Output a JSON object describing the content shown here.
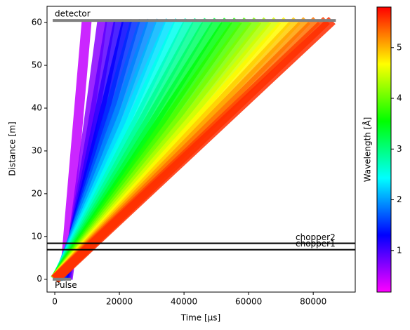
{
  "chart_data": {
    "type": "time-distance",
    "xlabel": "Time [µs]",
    "ylabel": "Distance [m]",
    "colorbar_label": "Wavelength [Å]",
    "xlim": [
      -2400,
      93000
    ],
    "xticks": [
      0,
      20000,
      40000,
      60000,
      80000
    ],
    "ylim": [
      -3,
      63.8
    ],
    "yticks": [
      0,
      10,
      20,
      30,
      40,
      50,
      60
    ],
    "clim": [
      0.18,
      5.8
    ],
    "cticks": [
      1,
      2,
      3,
      4,
      5
    ],
    "colormap": [
      "#ff00ff",
      "#0000ff",
      "#00ffff",
      "#00ff00",
      "#ffff00",
      "#ff0000"
    ],
    "detector": {
      "label": "detector",
      "distance": 60.5,
      "t_start": 0,
      "t_end": 87000,
      "color": "#808080"
    },
    "pulse": {
      "label": "Pulse",
      "t_start": 0,
      "t_end": 5000,
      "color": "#808080"
    },
    "choppers": [
      {
        "label": "chopper1",
        "distance": 6.9,
        "color": "#000000"
      },
      {
        "label": "chopper2",
        "distance": 8.4,
        "color": "#000000"
      }
    ],
    "rays": [
      {
        "wavelength": 0.45,
        "t_start": 3000,
        "t_end": 9882
      },
      {
        "wavelength": 0.7,
        "t_start": 4000,
        "t_end": 14705
      },
      {
        "wavelength": 0.9,
        "t_start": 3500,
        "t_end": 17264
      },
      {
        "wavelength": 1.1,
        "t_start": 3000,
        "t_end": 19822
      },
      {
        "wavelength": 1.3,
        "t_start": 2500,
        "t_end": 22381
      },
      {
        "wavelength": 1.5,
        "t_start": 2000,
        "t_end": 24940
      },
      {
        "wavelength": 1.7,
        "t_start": 1500,
        "t_end": 27498
      },
      {
        "wavelength": 1.9,
        "t_start": 1000,
        "t_end": 30057
      },
      {
        "wavelength": 2.1,
        "t_start": 800,
        "t_end": 32915
      },
      {
        "wavelength": 2.3,
        "t_start": 600,
        "t_end": 35774
      },
      {
        "wavelength": 2.5,
        "t_start": 400,
        "t_end": 38633
      },
      {
        "wavelength": 2.7,
        "t_start": 300,
        "t_end": 41591
      },
      {
        "wavelength": 2.9,
        "t_start": 200,
        "t_end": 44550
      },
      {
        "wavelength": 3.1,
        "t_start": 150,
        "t_end": 47558
      },
      {
        "wavelength": 3.3,
        "t_start": 100,
        "t_end": 50567
      },
      {
        "wavelength": 3.5,
        "t_start": 100,
        "t_end": 53626
      },
      {
        "wavelength": 3.7,
        "t_start": 80,
        "t_end": 56664
      },
      {
        "wavelength": 3.9,
        "t_start": 60,
        "t_end": 59703
      },
      {
        "wavelength": 4.1,
        "t_start": 50,
        "t_end": 62751
      },
      {
        "wavelength": 4.3,
        "t_start": 40,
        "t_end": 65800
      },
      {
        "wavelength": 4.5,
        "t_start": 30,
        "t_end": 68849
      },
      {
        "wavelength": 4.7,
        "t_start": 20,
        "t_end": 71897
      },
      {
        "wavelength": 4.9,
        "t_start": 10,
        "t_end": 74946
      },
      {
        "wavelength": 5.1,
        "t_start": 0,
        "t_end": 77994
      },
      {
        "wavelength": 5.3,
        "t_start": 0,
        "t_end": 81053
      },
      {
        "wavelength": 5.5,
        "t_start": 0,
        "t_end": 84112
      },
      {
        "wavelength": 5.6,
        "t_start": 200,
        "t_end": 85841
      }
    ]
  }
}
